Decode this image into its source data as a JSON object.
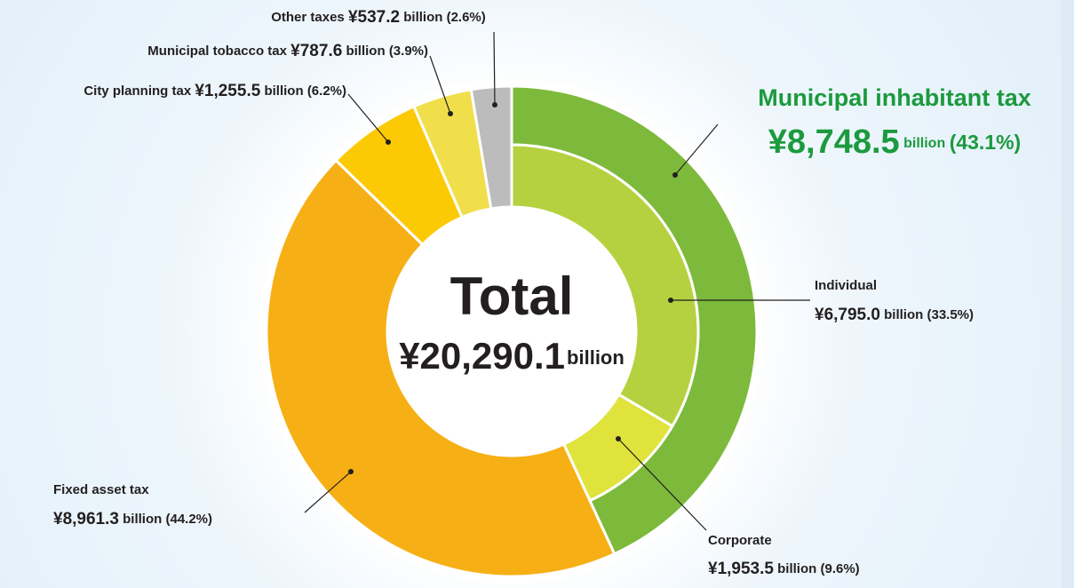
{
  "chart_data": {
    "type": "pie",
    "title": "Total",
    "total_label": "¥20,290.1",
    "unit": "billion",
    "categories": [
      "Municipal inhabitant tax",
      "Fixed asset tax",
      "City planning tax",
      "Municipal tobacco tax",
      "Other taxes"
    ],
    "values": [
      8748.5,
      8961.3,
      1255.5,
      787.6,
      537.2
    ],
    "value_labels": [
      "¥8,748.5",
      "¥8,961.3",
      "¥1,255.5",
      "¥787.6",
      "¥537.2"
    ],
    "percent_labels": [
      "(43.1%)",
      "(44.2%)",
      "(6.2%)",
      "(3.9%)",
      "(2.6%)"
    ],
    "colors": [
      "#7dba3b",
      "#f6b015",
      "#fcca05",
      "#f0df4b",
      "#bcbcbc"
    ],
    "breakdown": {
      "parent": 0,
      "categories": [
        "Individual",
        "Corporate"
      ],
      "values": [
        6795.0,
        1953.5
      ],
      "value_labels": [
        "¥6,795.0",
        "¥1,953.5"
      ],
      "percent_labels": [
        "(33.5%)",
        "(9.6%)"
      ],
      "colors": [
        "#b6d13f",
        "#dfe33c"
      ]
    }
  }
}
